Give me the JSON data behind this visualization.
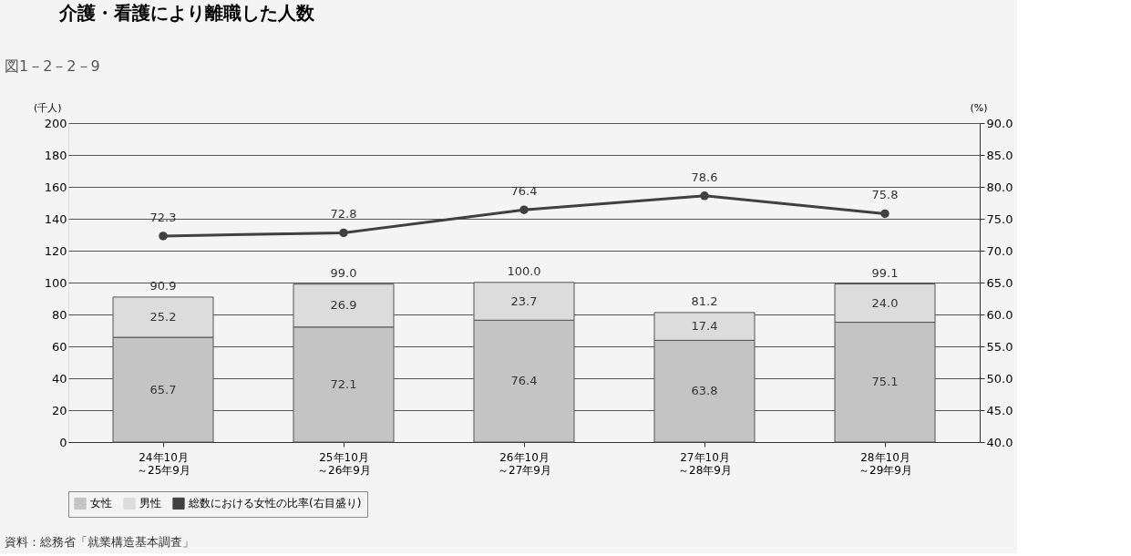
{
  "chart_data": {
    "type": "bar",
    "title": "介護・看護により離職した人数",
    "categories": [
      "24年10月～25年9月",
      "25年10月～26年9月",
      "26年10月～27年9月",
      "27年10月～28年9月",
      "28年10月～29年9月"
    ],
    "series": [
      {
        "name": "女性",
        "color": "#c4c4c4",
        "values": [
          65.7,
          72.1,
          76.4,
          63.8,
          75.1
        ]
      },
      {
        "name": "男性",
        "color": "#dcdcdc",
        "values": [
          25.2,
          26.9,
          23.7,
          17.4,
          24.0
        ],
        "value_labels": [
          "25.2",
          "26.9",
          "23.7",
          "17.4",
          "24.0"
        ]
      },
      {
        "name": "総数における女性の比率(右目盛り)",
        "type": "line",
        "axis": "y2",
        "color": "#404040",
        "values": [
          72.3,
          72.8,
          76.4,
          78.6,
          75.8
        ]
      }
    ],
    "stacked": true,
    "data_labels": true,
    "totals": [
      "90.9",
      "99.0",
      "100.0",
      "81.2",
      "99.1"
    ],
    "ylabel": "(千人)",
    "y2label": "(%)",
    "ylim": [
      0,
      200
    ],
    "yticks": [
      0,
      20,
      40,
      60,
      80,
      100,
      120,
      140,
      160,
      180,
      200
    ],
    "y2lim": [
      40,
      90
    ],
    "y2ticks": [
      {
        "value": 40,
        "label": "40.0"
      },
      {
        "value": 45,
        "label": "45.0"
      },
      {
        "value": 50,
        "label": "50.0"
      },
      {
        "value": 55,
        "label": "55.0"
      },
      {
        "value": 60,
        "label": "60.0"
      },
      {
        "value": 65,
        "label": "65.0"
      },
      {
        "value": 70,
        "label": "70.0"
      },
      {
        "value": 75,
        "label": "75.0"
      },
      {
        "value": 80,
        "label": "80.0"
      },
      {
        "value": 85,
        "label": "85.0"
      },
      {
        "value": 90,
        "label": "90.0"
      }
    ],
    "grid": "y",
    "legend": "bottom",
    "marker": "circle",
    "line_style": "solid",
    "annotations": [
      "図1－2－2－9",
      "資料：総務省「就業構造基本調査」"
    ]
  }
}
